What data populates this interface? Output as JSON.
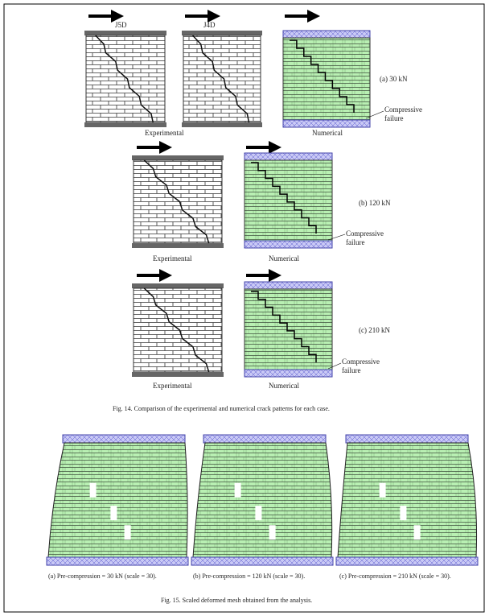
{
  "fig14": {
    "specimens": [
      "J5D",
      "J4D"
    ],
    "rows": [
      {
        "case": "(a) 30 kN",
        "annotation": "Compressive failure",
        "left_label": "Experimental",
        "right_label": "Numerical"
      },
      {
        "case": "(b) 120 kN",
        "annotation": "Compressive failure",
        "left_label": "Experimental",
        "right_label": "Numerical"
      },
      {
        "case": "(c) 210 kN",
        "annotation": "Compressive failure",
        "left_label": "Experimental",
        "right_label": "Numerical"
      }
    ],
    "caption": "Fig. 14.  Comparison of the experimental and numerical crack patterns for each case."
  },
  "fig15": {
    "subcaptions": [
      "(a) Pre-compression = 30 kN (scale = 30).",
      "(b) Pre-compression = 120 kN (scale = 30).",
      "(c) Pre-compression = 210 kN (scale = 30)."
    ],
    "caption": "Fig. 15.  Scaled deformed mesh obtained from the analysis."
  }
}
